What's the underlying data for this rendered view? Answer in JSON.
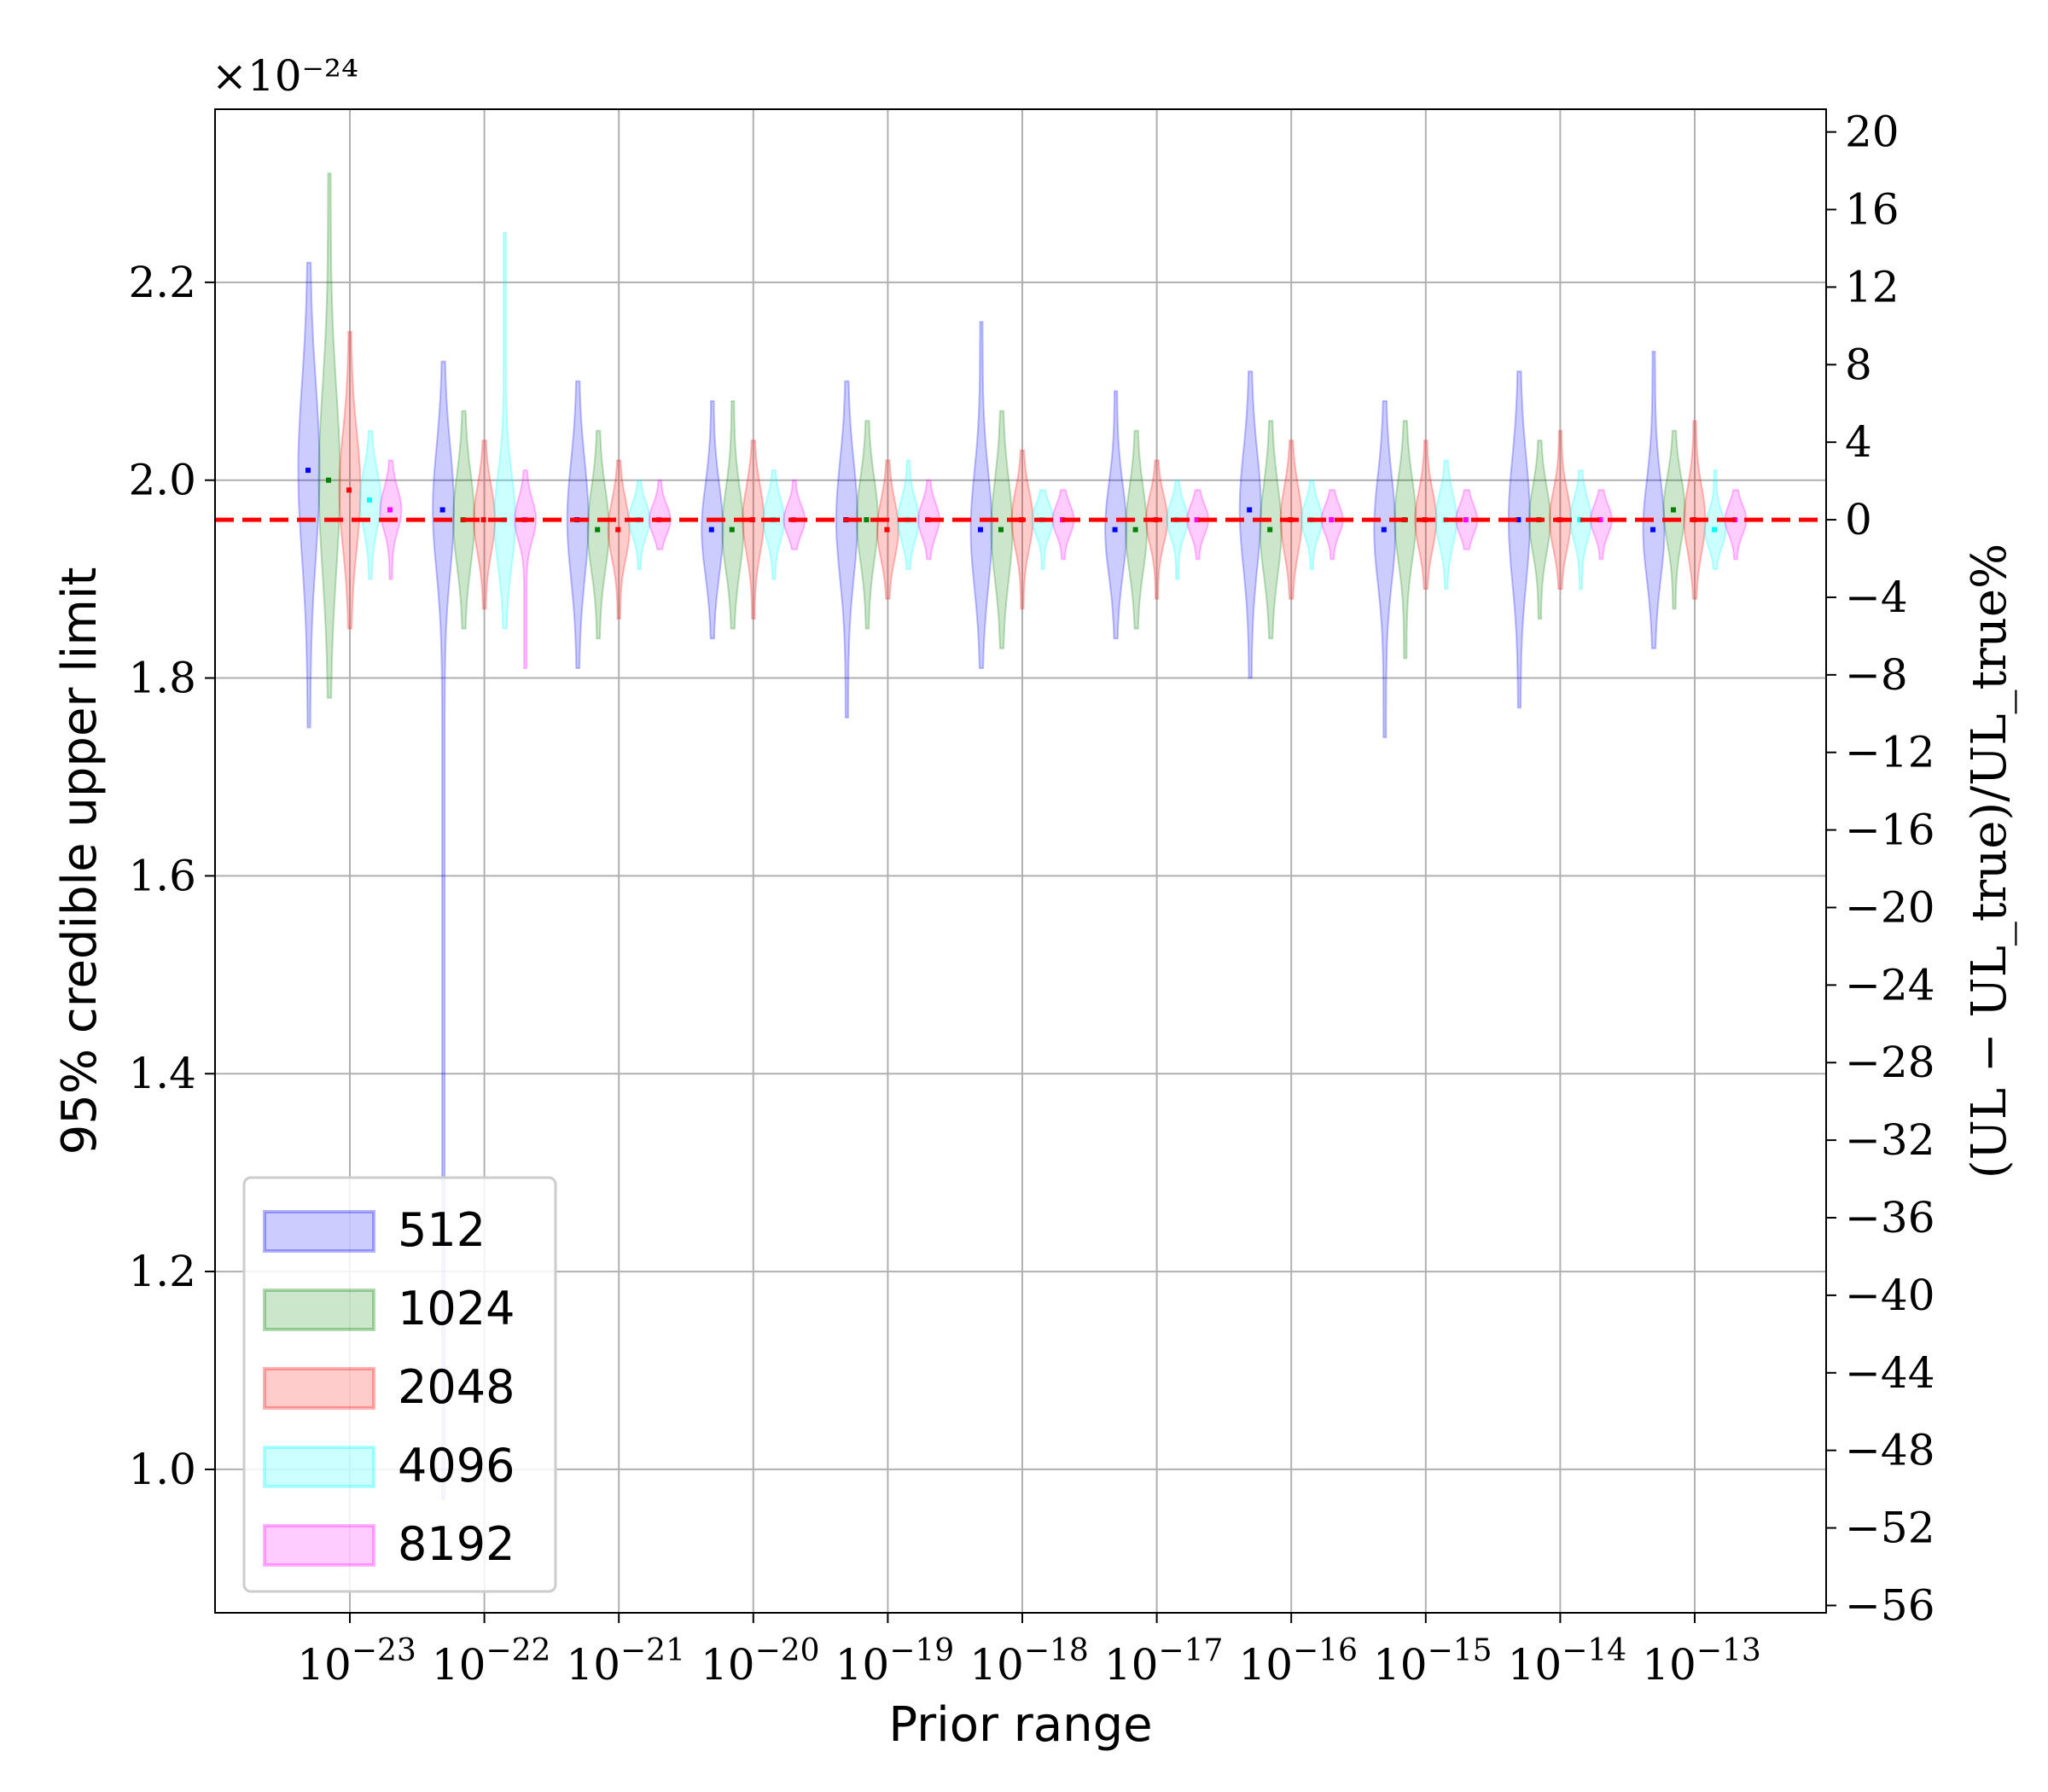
{
  "chart_data": {
    "type": "violin",
    "xlabel": "Prior range",
    "ylabel": "95% credible upper limit",
    "ylabel_right": "(UL − UL_true)/UL_true%",
    "y_multiplier": "×10⁻²⁴",
    "categories": [
      "10^-23",
      "10^-22",
      "10^-21",
      "10^-20",
      "10^-19",
      "10^-18",
      "10^-17",
      "10^-16",
      "10^-15",
      "10^-14",
      "10^-13"
    ],
    "x_tick_bases": [
      "10",
      "10",
      "10",
      "10",
      "10",
      "10",
      "10",
      "10",
      "10",
      "10",
      "10"
    ],
    "x_tick_exponents": [
      "−23",
      "−22",
      "−21",
      "−20",
      "−19",
      "−18",
      "−17",
      "−16",
      "−15",
      "−14",
      "−13"
    ],
    "ylim": [
      0.855,
      2.375
    ],
    "yticks": [
      1.0,
      1.2,
      1.4,
      1.6,
      1.8,
      2.0,
      2.2
    ],
    "ytick_labels": [
      "1.0",
      "1.2",
      "1.4",
      "1.6",
      "1.8",
      "2.0",
      "2.2"
    ],
    "right_axis": {
      "reference": 1.96,
      "ticks": [
        20,
        16,
        12,
        8,
        4,
        0,
        -4,
        -8,
        -12,
        -16,
        -20,
        -24,
        -28,
        -32,
        -36,
        -40,
        -44,
        -48,
        -52,
        -56
      ],
      "tick_labels": [
        "20",
        "16",
        "12",
        "8",
        "4",
        "0",
        "−4",
        "−8",
        "−12",
        "−16",
        "−20",
        "−24",
        "−28",
        "−32",
        "−36",
        "−40",
        "−44",
        "−48",
        "−52",
        "−56"
      ]
    },
    "reference_line": {
      "value": 1.96,
      "color": "#ff0000",
      "style": "dashed"
    },
    "grid": true,
    "legend": {
      "position": "lower-left"
    },
    "series": [
      {
        "name": "512",
        "color": "#0000ff",
        "min": [
          1.75,
          0.97,
          1.81,
          1.84,
          1.76,
          1.81,
          1.84,
          1.8,
          1.74,
          1.77,
          1.83
        ],
        "max": [
          2.22,
          2.12,
          2.1,
          2.08,
          2.1,
          2.16,
          2.09,
          2.11,
          2.08,
          2.11,
          2.13
        ],
        "median": [
          2.01,
          1.97,
          1.96,
          1.95,
          1.96,
          1.95,
          1.95,
          1.97,
          1.95,
          1.96,
          1.95
        ]
      },
      {
        "name": "1024",
        "color": "#008000",
        "min": [
          1.78,
          1.85,
          1.84,
          1.85,
          1.85,
          1.83,
          1.85,
          1.84,
          1.82,
          1.86,
          1.87
        ],
        "max": [
          2.31,
          2.07,
          2.05,
          2.08,
          2.06,
          2.07,
          2.05,
          2.06,
          2.06,
          2.04,
          2.05
        ],
        "median": [
          2.0,
          1.96,
          1.95,
          1.95,
          1.96,
          1.95,
          1.95,
          1.95,
          1.96,
          1.96,
          1.97
        ]
      },
      {
        "name": "2048",
        "color": "#ff0000",
        "min": [
          1.85,
          1.87,
          1.86,
          1.86,
          1.88,
          1.87,
          1.88,
          1.88,
          1.89,
          1.89,
          1.88
        ],
        "max": [
          2.15,
          2.04,
          2.02,
          2.04,
          2.02,
          2.03,
          2.02,
          2.04,
          2.04,
          2.05,
          2.06
        ],
        "median": [
          1.99,
          1.96,
          1.95,
          1.96,
          1.95,
          1.96,
          1.96,
          1.96,
          1.96,
          1.96,
          1.96
        ]
      },
      {
        "name": "4096",
        "color": "#00ffff",
        "min": [
          1.9,
          1.85,
          1.91,
          1.9,
          1.91,
          1.91,
          1.9,
          1.91,
          1.89,
          1.89,
          1.91
        ],
        "max": [
          2.05,
          2.25,
          2.0,
          2.01,
          2.02,
          1.99,
          2.0,
          2.0,
          2.02,
          2.01,
          2.01
        ],
        "median": [
          1.98,
          1.96,
          1.96,
          1.96,
          1.96,
          1.96,
          1.96,
          1.96,
          1.96,
          1.96,
          1.95
        ]
      },
      {
        "name": "8192",
        "color": "#ff00ff",
        "min": [
          1.9,
          1.81,
          1.93,
          1.93,
          1.92,
          1.92,
          1.92,
          1.92,
          1.93,
          1.92,
          1.92
        ],
        "max": [
          2.02,
          2.01,
          2.0,
          2.0,
          2.0,
          1.99,
          1.99,
          1.99,
          1.99,
          1.99,
          1.99
        ],
        "median": [
          1.97,
          1.96,
          1.96,
          1.96,
          1.96,
          1.96,
          1.96,
          1.96,
          1.96,
          1.96,
          1.96
        ]
      }
    ]
  }
}
